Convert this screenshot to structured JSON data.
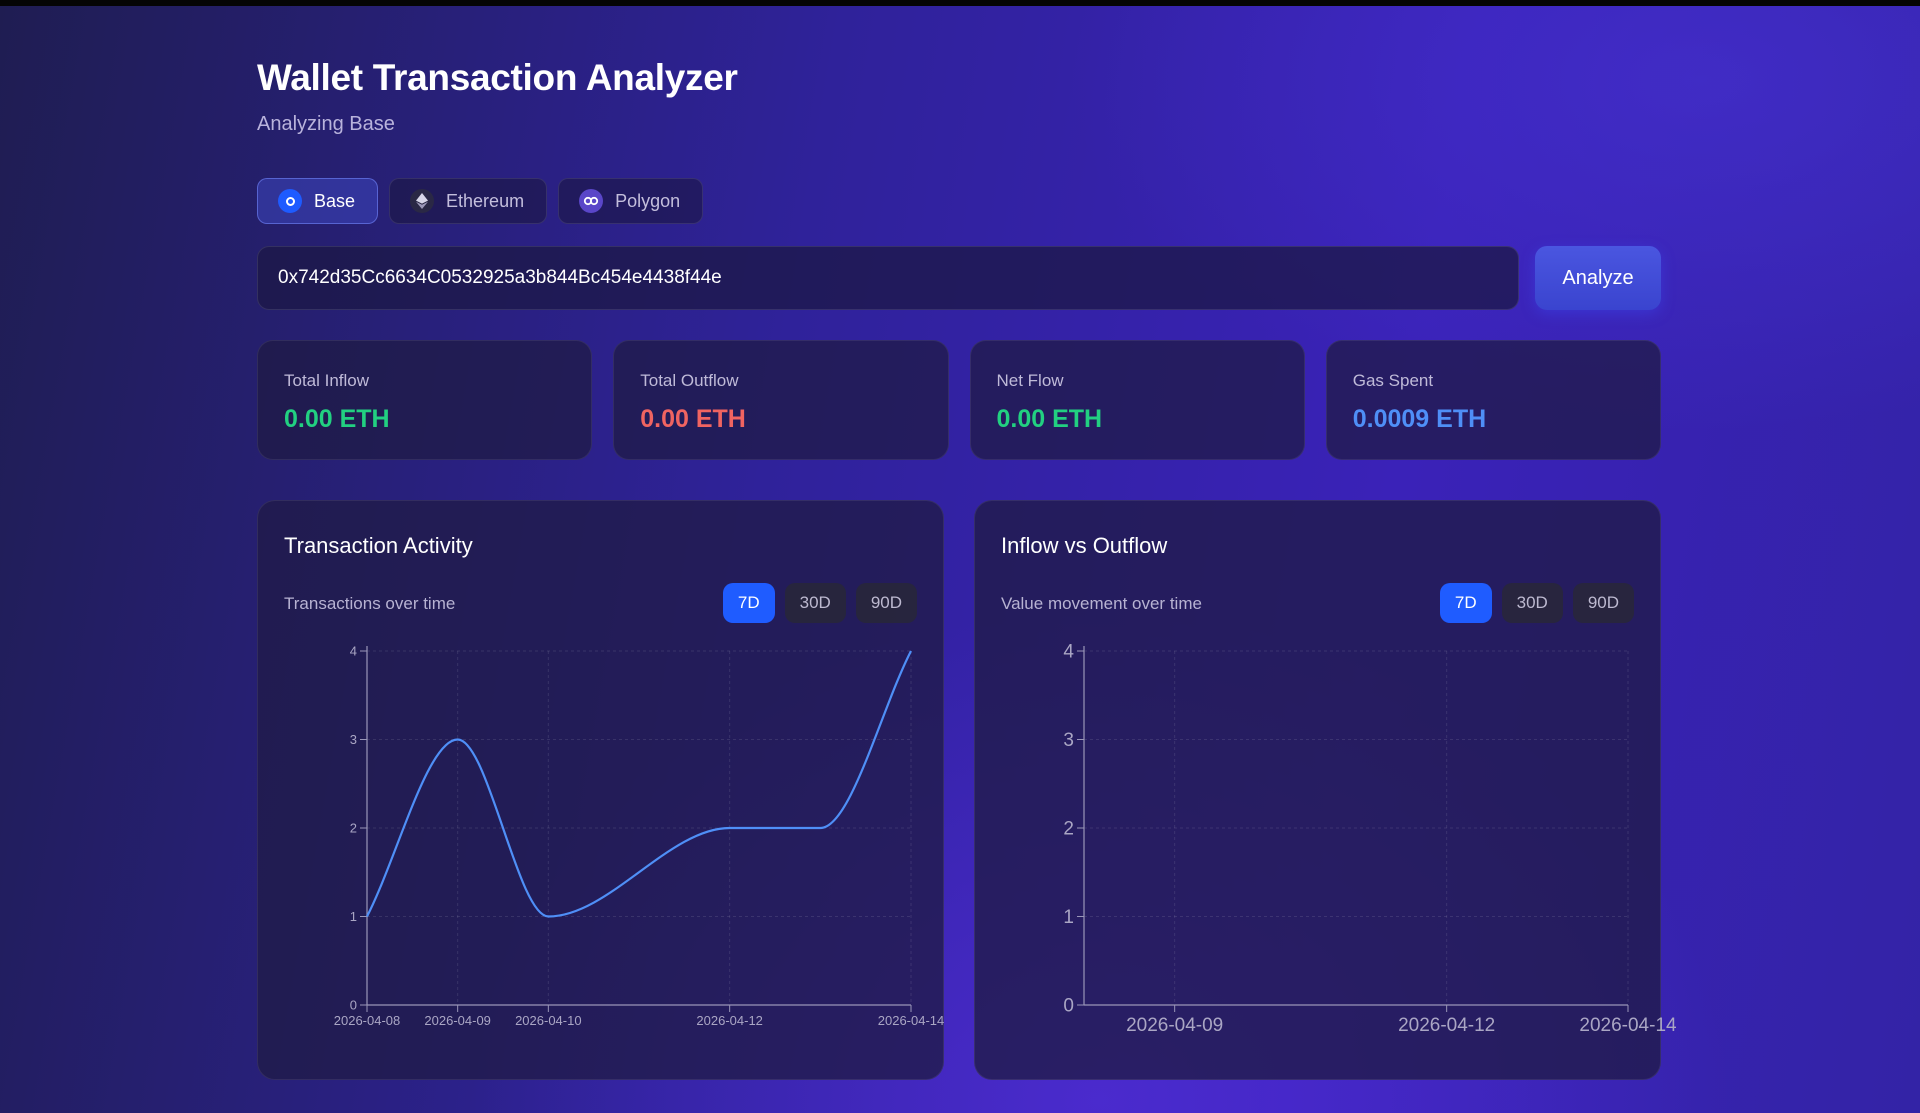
{
  "header": {
    "title": "Wallet Transaction Analyzer",
    "subtitle": "Analyzing Base"
  },
  "networks": [
    {
      "label": "Base",
      "icon": "base-icon",
      "active": true
    },
    {
      "label": "Ethereum",
      "icon": "ethereum-icon",
      "active": false
    },
    {
      "label": "Polygon",
      "icon": "polygon-icon",
      "active": false
    }
  ],
  "search": {
    "value": "0x742d35Cc6634C0532925a3b844Bc454e4438f44e",
    "button_label": "Analyze"
  },
  "stats": [
    {
      "label": "Total Inflow",
      "value": "0.00 ETH",
      "color": "#22d081"
    },
    {
      "label": "Total Outflow",
      "value": "0.00 ETH",
      "color": "#f06461"
    },
    {
      "label": "Net Flow",
      "value": "0.00 ETH",
      "color": "#22d081"
    },
    {
      "label": "Gas Spent",
      "value": "0.0009 ETH",
      "color": "#4f8ff7"
    }
  ],
  "activity": {
    "title": "Transaction Activity",
    "subtitle": "Transactions over time",
    "ranges": [
      "7D",
      "30D",
      "90D"
    ],
    "active_range": "7D"
  },
  "flow": {
    "title": "Inflow vs Outflow",
    "subtitle": "Value movement over time",
    "ranges": [
      "7D",
      "30D",
      "90D"
    ],
    "active_range": "7D"
  },
  "chart_data": [
    {
      "type": "line",
      "title": "Transaction Activity",
      "x": [
        "2026-04-08",
        "2026-04-09",
        "2026-04-10",
        "2026-04-12",
        "2026-04-13",
        "2026-04-14"
      ],
      "series": [
        {
          "values": [
            1,
            3,
            1,
            2,
            2,
            4
          ]
        }
      ],
      "tick_labels": [
        "2026-04-08",
        "2026-04-09",
        "2026-04-10",
        "2026-04-12",
        "2026-04-14"
      ],
      "yticks": [
        0,
        1,
        2,
        3,
        4
      ],
      "ylim": [
        0,
        4
      ],
      "grid": true,
      "line_color": "#4f8ff7"
    },
    {
      "type": "line",
      "title": "Inflow vs Outflow",
      "x": [
        "2026-04-09",
        "2026-04-12",
        "2026-04-14"
      ],
      "series": [],
      "tick_labels": [
        "2026-04-09",
        "2026-04-12",
        "2026-04-14"
      ],
      "yticks": [
        0,
        1,
        2,
        3,
        4
      ],
      "ylim": [
        0,
        4
      ],
      "grid": true
    }
  ]
}
